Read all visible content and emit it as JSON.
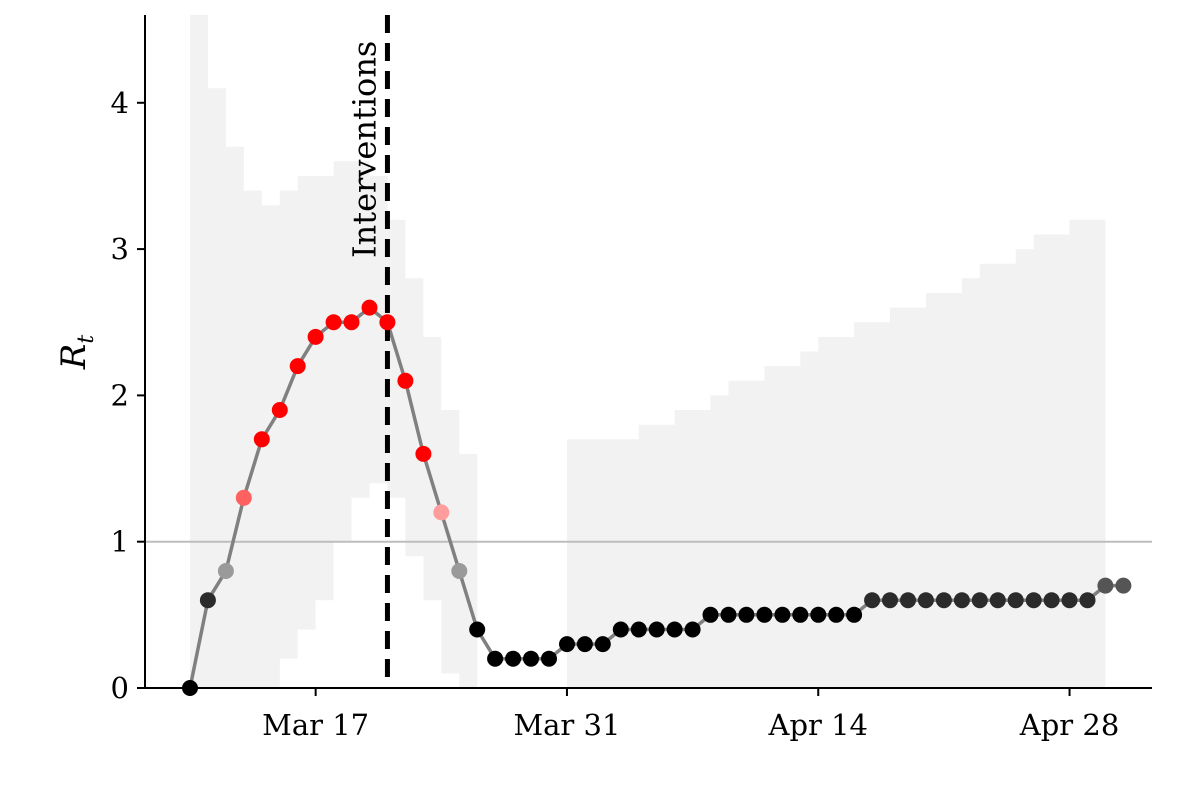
{
  "chart_data": {
    "type": "scatter",
    "title": "",
    "xlabel": "",
    "ylabel": "R",
    "ylabel_subscript": "t",
    "x_start": "2020-03-10",
    "x_ticks": [
      "Mar 17",
      "Mar 31",
      "Apr 14",
      "Apr 28"
    ],
    "y_ticks": [
      "0",
      "1",
      "2",
      "3",
      "4"
    ],
    "ylim": [
      0,
      4.6
    ],
    "reference_line": {
      "y": 1,
      "color": "#bdbdbd"
    },
    "annotation": {
      "label": "Interventions",
      "date": "2020-03-21",
      "style": "dashed"
    },
    "band_color": "#f2f2f2",
    "line_color": "#808080",
    "grid": false,
    "legend": "none",
    "series": [
      {
        "values": [
          0.0,
          0.6,
          0.8,
          1.3,
          1.7,
          1.9,
          2.2,
          2.4,
          2.5,
          2.5,
          2.6,
          2.5,
          2.1,
          1.6,
          1.2,
          0.8,
          0.4,
          0.2,
          0.2,
          0.2,
          0.2,
          0.3,
          0.3,
          0.3,
          0.4,
          0.4,
          0.4,
          0.4,
          0.4,
          0.5,
          0.5,
          0.5,
          0.5,
          0.5,
          0.5,
          0.5,
          0.5,
          0.5,
          0.6,
          0.6,
          0.6,
          0.6,
          0.6,
          0.6,
          0.6,
          0.6,
          0.6,
          0.6,
          0.6,
          0.6,
          0.6,
          0.7,
          0.7
        ],
        "upper": [
          4.6,
          4.1,
          3.7,
          3.4,
          3.3,
          3.4,
          3.5,
          3.5,
          3.6,
          3.6,
          3.5,
          3.2,
          2.8,
          2.4,
          1.9,
          1.6,
          1.6,
          0.0,
          0.0,
          0.0,
          0.0,
          1.7,
          1.7,
          1.7,
          1.7,
          1.8,
          1.8,
          1.9,
          1.9,
          2.0,
          2.1,
          2.1,
          2.2,
          2.2,
          2.3,
          2.4,
          2.4,
          2.5,
          2.5,
          2.6,
          2.6,
          2.7,
          2.7,
          2.8,
          2.9,
          2.9,
          3.0,
          3.1,
          3.1,
          3.2,
          3.2,
          3.3,
          null
        ],
        "lower": [
          0.0,
          0.0,
          0.0,
          0.0,
          0.0,
          0.2,
          0.4,
          0.6,
          1.0,
          1.3,
          1.4,
          1.3,
          0.9,
          0.6,
          0.1,
          0.0,
          0.0,
          0.0,
          0.0,
          0.0,
          0.0,
          0.0,
          0.0,
          0.0,
          0.0,
          0.0,
          0.0,
          0.0,
          0.0,
          0.0,
          0.0,
          0.0,
          0.0,
          0.0,
          0.0,
          0.0,
          0.0,
          0.0,
          0.0,
          0.0,
          0.0,
          0.0,
          0.0,
          0.0,
          0.0,
          0.0,
          0.0,
          0.0,
          0.0,
          0.0,
          0.0,
          0.0,
          null
        ],
        "colors": [
          "#000000",
          "#2b2b2b",
          "#9a9a9a",
          "#ff6161",
          "#ff0000",
          "#ff0000",
          "#ff0000",
          "#ff0000",
          "#ff0000",
          "#ff0000",
          "#ff0000",
          "#ff0000",
          "#ff0000",
          "#ff0000",
          "#ff9d9d",
          "#9a9a9a",
          "#000000",
          "#000000",
          "#000000",
          "#000000",
          "#000000",
          "#000000",
          "#000000",
          "#000000",
          "#000000",
          "#000000",
          "#000000",
          "#000000",
          "#000000",
          "#000000",
          "#000000",
          "#000000",
          "#000000",
          "#000000",
          "#000000",
          "#000000",
          "#000000",
          "#000000",
          "#2b2b2b",
          "#2b2b2b",
          "#2b2b2b",
          "#2b2b2b",
          "#2b2b2b",
          "#2b2b2b",
          "#2b2b2b",
          "#2b2b2b",
          "#2b2b2b",
          "#2b2b2b",
          "#2b2b2b",
          "#2b2b2b",
          "#2b2b2b",
          "#555555",
          "#555555"
        ]
      }
    ]
  }
}
